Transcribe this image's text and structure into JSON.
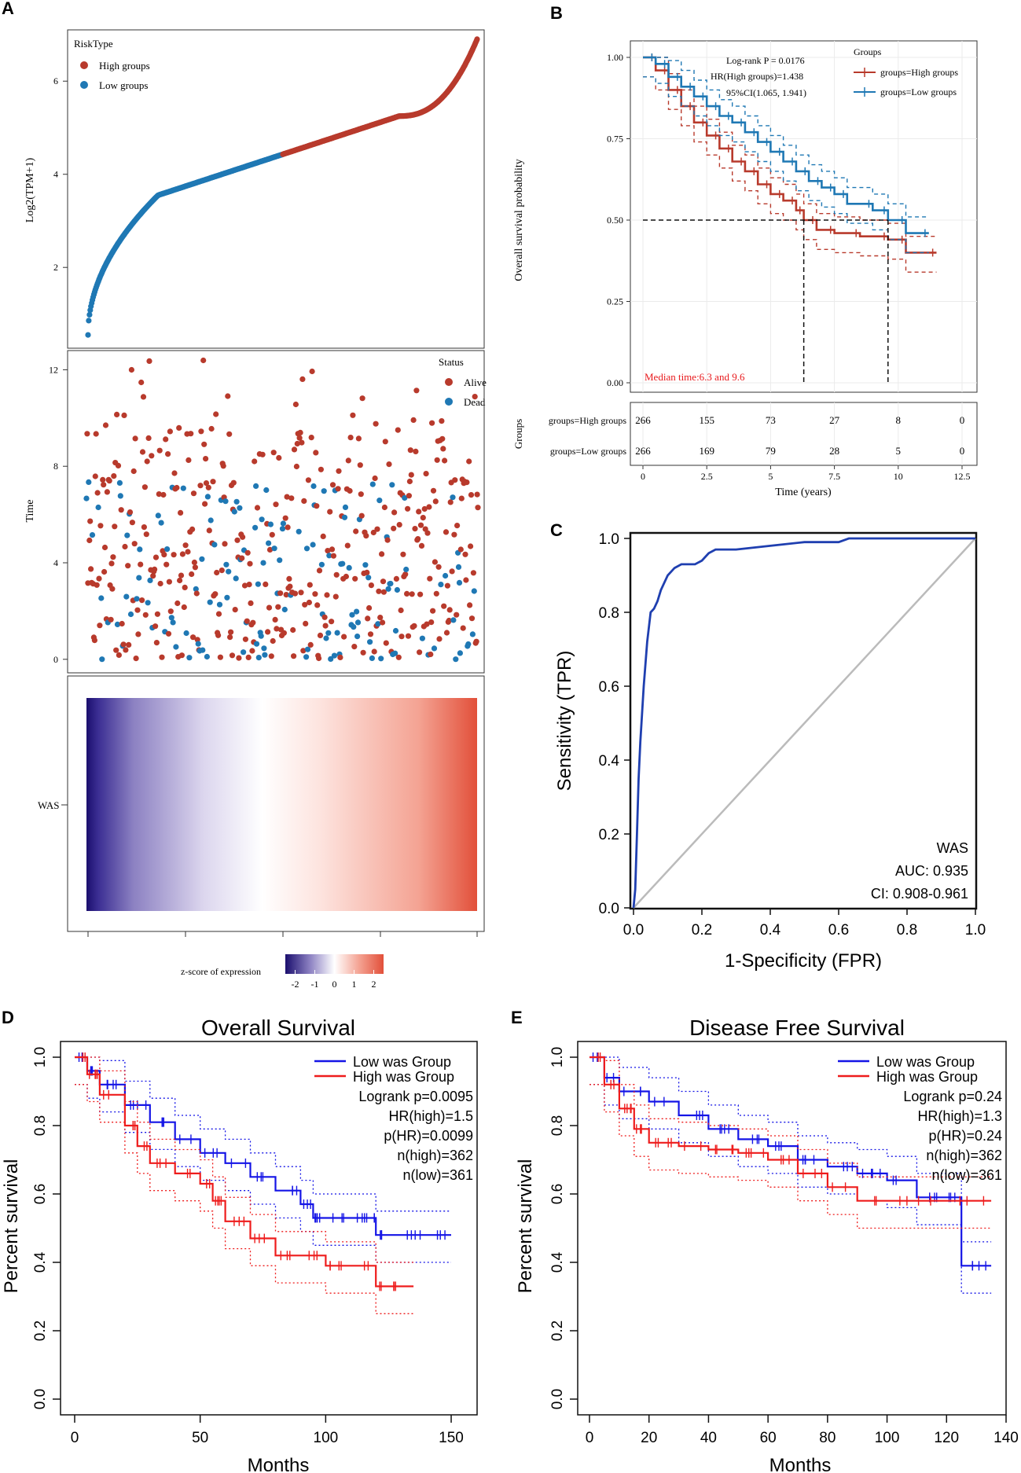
{
  "colors": {
    "high": "#b83a2c",
    "low": "#1f78b4",
    "km_low": "#1414e6",
    "km_high": "#ee1c1c",
    "roc": "#1f3fb0",
    "diag": "#bbbbbb",
    "median_text": "#e8191c",
    "heat_low": "#1b0f6e",
    "heat_mid": "#ffffff",
    "heat_high": "#e2503a"
  },
  "panel_labels": {
    "a": "A",
    "b": "B",
    "c": "C",
    "d": "D",
    "e": "E"
  },
  "chart_data": [
    {
      "id": "A1",
      "type": "scatter",
      "title": "",
      "xlabel": "",
      "ylabel": "Log2(TPM+1)",
      "ylim": [
        0.4,
        7.0
      ],
      "yticks": [
        "2",
        "4",
        "6"
      ],
      "legend": {
        "title": "RiskType",
        "placement": "top-left",
        "items": [
          "High groups",
          "Low groups"
        ]
      },
      "series": [
        {
          "name": "Low groups",
          "n": 266,
          "start": 0.55,
          "end": 4.55
        },
        {
          "name": "High groups",
          "n": 266,
          "start": 4.55,
          "end": 6.9
        }
      ]
    },
    {
      "id": "A2",
      "type": "scatter",
      "ylabel": "Time",
      "ylim": [
        -0.3,
        12.6
      ],
      "yticks": [
        "0",
        "4",
        "8",
        "12"
      ],
      "legend": {
        "title": "Status",
        "placement": "top-right",
        "items": [
          "Alive",
          "Dead"
        ]
      },
      "series": [
        {
          "name": "Alive",
          "approx_points": 380,
          "max_time": 12.4
        },
        {
          "name": "Dead",
          "approx_points": 150,
          "max_time": 9.7
        }
      ]
    },
    {
      "id": "A3",
      "type": "heatmap",
      "row_label": "WAS",
      "legend_title": "z-score of expression",
      "legend_ticks": [
        "-2",
        "-1",
        "0",
        "1",
        "2"
      ],
      "range": [
        -2.5,
        2.5
      ]
    },
    {
      "id": "B",
      "type": "line",
      "title": "",
      "xlabel": "Time (years)",
      "ylabel": "Overall survival probability",
      "xlim": [
        0,
        12.5
      ],
      "ylim": [
        0,
        1
      ],
      "xticks": [
        "0",
        "2.5",
        "5",
        "7.5",
        "10",
        "12.5"
      ],
      "yticks": [
        "0.00",
        "0.25",
        "0.50",
        "0.75",
        "1.00"
      ],
      "annotations": [
        "Log-rank P = 0.0176",
        "HR(High groups)=1.438",
        "95%CI(1.065, 1.941)"
      ],
      "median_text": "Median time:6.3 and 9.6",
      "medians": [
        6.3,
        9.6
      ],
      "legend": {
        "title": "Groups",
        "placement": "top-right",
        "items": [
          "groups=High groups",
          "groups=Low groups"
        ]
      },
      "series": [
        {
          "name": "groups=High groups",
          "x": [
            0,
            0.5,
            1,
            1.5,
            2,
            2.5,
            3,
            3.5,
            4,
            4.5,
            5,
            5.5,
            6,
            6.3,
            6.8,
            7.5,
            8.5,
            9.6,
            10.3,
            11.5
          ],
          "y": [
            1.0,
            0.96,
            0.9,
            0.85,
            0.8,
            0.76,
            0.72,
            0.68,
            0.65,
            0.61,
            0.58,
            0.56,
            0.53,
            0.5,
            0.47,
            0.46,
            0.45,
            0.44,
            0.4,
            0.4
          ]
        },
        {
          "name": "groups=Low groups",
          "x": [
            0,
            0.5,
            1,
            1.5,
            2,
            2.5,
            3,
            3.5,
            4,
            4.5,
            5,
            5.5,
            6,
            6.5,
            7,
            7.5,
            8,
            9,
            9.6,
            10.3,
            11.2
          ],
          "y": [
            1.0,
            0.98,
            0.94,
            0.91,
            0.88,
            0.85,
            0.82,
            0.8,
            0.77,
            0.74,
            0.71,
            0.68,
            0.65,
            0.62,
            0.6,
            0.58,
            0.55,
            0.53,
            0.5,
            0.46,
            0.46
          ]
        }
      ],
      "risk_table": {
        "title": "Groups",
        "rows": [
          {
            "label": "groups=High groups",
            "counts": [
              "266",
              "155",
              "73",
              "27",
              "8",
              "0"
            ]
          },
          {
            "label": "groups=Low groups",
            "counts": [
              "266",
              "169",
              "79",
              "28",
              "5",
              "0"
            ]
          }
        ]
      }
    },
    {
      "id": "C",
      "type": "line",
      "xlabel": "1-Specificity (FPR)",
      "ylabel": "Sensitivity (TPR)",
      "xlim": [
        0,
        1
      ],
      "ylim": [
        0,
        1
      ],
      "xticks": [
        "0.0",
        "0.2",
        "0.4",
        "0.6",
        "0.8",
        "1.0"
      ],
      "yticks": [
        "0.0",
        "0.2",
        "0.4",
        "0.6",
        "0.8",
        "1.0"
      ],
      "annotations": [
        "WAS",
        "AUC: 0.935",
        "CI: 0.908-0.961"
      ],
      "series": [
        {
          "name": "ROC",
          "x": [
            0,
            0.005,
            0.01,
            0.015,
            0.02,
            0.03,
            0.04,
            0.05,
            0.06,
            0.07,
            0.08,
            0.1,
            0.12,
            0.14,
            0.16,
            0.18,
            0.2,
            0.22,
            0.24,
            0.26,
            0.3,
            0.4,
            0.5,
            0.6,
            0.63,
            0.8,
            1.0
          ],
          "y": [
            0,
            0.05,
            0.2,
            0.35,
            0.45,
            0.6,
            0.72,
            0.8,
            0.81,
            0.83,
            0.86,
            0.9,
            0.92,
            0.93,
            0.93,
            0.93,
            0.94,
            0.96,
            0.97,
            0.97,
            0.97,
            0.98,
            0.99,
            0.99,
            1.0,
            1.0,
            1.0
          ]
        },
        {
          "name": "reference",
          "x": [
            0,
            1
          ],
          "y": [
            0,
            1
          ]
        }
      ]
    },
    {
      "id": "D",
      "type": "line",
      "title": "Overall Survival",
      "xlabel": "Months",
      "ylabel": "Percent survival",
      "xlim": [
        0,
        155
      ],
      "ylim": [
        0,
        1
      ],
      "xticks": [
        "0",
        "50",
        "100",
        "150"
      ],
      "yticks": [
        "0.0",
        "0.2",
        "0.4",
        "0.6",
        "0.8",
        "1.0"
      ],
      "legend": {
        "placement": "top-right",
        "items": [
          "Low was Group",
          "High was Group"
        ]
      },
      "stats": [
        "Logrank p=0.0095",
        "HR(high)=1.5",
        "p(HR)=0.0099",
        "n(high)=362",
        "n(low)=361"
      ],
      "series": [
        {
          "name": "Low was Group",
          "x": [
            0,
            5,
            10,
            20,
            30,
            40,
            50,
            60,
            70,
            80,
            90,
            95,
            100,
            110,
            118,
            120,
            130,
            140,
            150
          ],
          "y": [
            1.0,
            0.96,
            0.92,
            0.86,
            0.81,
            0.76,
            0.72,
            0.69,
            0.65,
            0.61,
            0.57,
            0.53,
            0.53,
            0.53,
            0.53,
            0.48,
            0.48,
            0.48,
            0.48
          ]
        },
        {
          "name": "High was Group",
          "x": [
            0,
            5,
            10,
            20,
            25,
            30,
            40,
            50,
            55,
            60,
            70,
            80,
            90,
            100,
            110,
            120,
            125,
            135
          ],
          "y": [
            1.0,
            0.95,
            0.89,
            0.8,
            0.74,
            0.69,
            0.66,
            0.63,
            0.58,
            0.52,
            0.47,
            0.42,
            0.42,
            0.39,
            0.39,
            0.33,
            0.33,
            0.33
          ]
        }
      ]
    },
    {
      "id": "E",
      "type": "line",
      "title": "Disease Free Survival",
      "xlabel": "Months",
      "ylabel": "Percent survival",
      "xlim": [
        0,
        140
      ],
      "ylim": [
        0,
        1
      ],
      "xticks": [
        "0",
        "20",
        "40",
        "60",
        "80",
        "100",
        "120",
        "140"
      ],
      "yticks": [
        "0.0",
        "0.2",
        "0.4",
        "0.6",
        "0.8",
        "1.0"
      ],
      "legend": {
        "placement": "top-right",
        "items": [
          "Low was Group",
          "High was Group"
        ]
      },
      "stats": [
        "Logrank p=0.24",
        "HR(high)=1.3",
        "p(HR)=0.24",
        "n(high)=362",
        "n(low)=361"
      ],
      "series": [
        {
          "name": "Low was Group",
          "x": [
            0,
            5,
            10,
            20,
            30,
            40,
            50,
            60,
            70,
            80,
            90,
            100,
            110,
            120,
            125,
            130,
            135
          ],
          "y": [
            1.0,
            0.94,
            0.9,
            0.87,
            0.83,
            0.79,
            0.76,
            0.74,
            0.7,
            0.68,
            0.66,
            0.64,
            0.59,
            0.59,
            0.39,
            0.39,
            0.39
          ]
        },
        {
          "name": "High was Group",
          "x": [
            0,
            5,
            10,
            15,
            20,
            30,
            40,
            50,
            60,
            70,
            80,
            90,
            100,
            120,
            135
          ],
          "y": [
            1.0,
            0.92,
            0.85,
            0.79,
            0.75,
            0.74,
            0.73,
            0.72,
            0.7,
            0.66,
            0.62,
            0.58,
            0.58,
            0.58,
            0.58
          ]
        }
      ]
    }
  ]
}
